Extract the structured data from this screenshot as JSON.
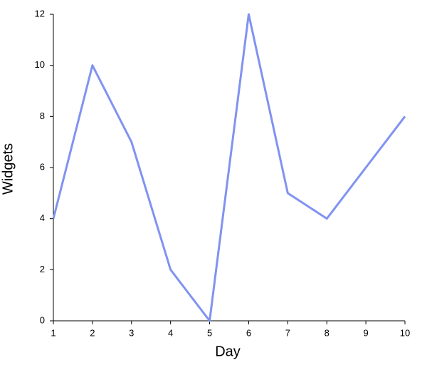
{
  "chart_data": {
    "type": "line",
    "x_label": "Day",
    "y_label": "Widgets",
    "x": [
      1,
      2,
      3,
      4,
      5,
      6,
      7,
      8,
      9,
      10
    ],
    "values": [
      4,
      10,
      7,
      2,
      0,
      12,
      5,
      4,
      6,
      8
    ],
    "color": "#8093f1",
    "xlim": [
      1,
      10
    ],
    "xticks": [
      1,
      2,
      3,
      4,
      5,
      6,
      7,
      8,
      9,
      10
    ],
    "ylim": [
      0,
      12
    ],
    "yticks": [
      0,
      2,
      4,
      6,
      8,
      10,
      12
    ]
  }
}
